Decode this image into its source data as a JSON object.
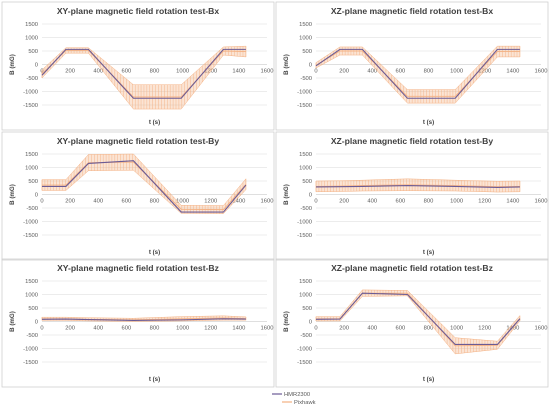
{
  "chart_data": [
    {
      "type": "line",
      "title": "XY-plane magnetic field rotation test-Bx",
      "xlabel": "t (s)",
      "ylabel": "B (mG)",
      "xlim": [
        0,
        1600
      ],
      "ylim": [
        -1500,
        1500
      ],
      "x_ticks": [
        0,
        200,
        400,
        600,
        800,
        1000,
        1200,
        1400,
        1600
      ],
      "y_ticks": [
        1500,
        1000,
        500,
        0,
        -500,
        -1000,
        -1500
      ],
      "grid": true,
      "series": [
        {
          "name": "HMR2300",
          "x": [
            0,
            170,
            330,
            650,
            990,
            1290,
            1450
          ],
          "y": [
            -400,
            560,
            560,
            -1250,
            -1250,
            560,
            560
          ]
        },
        {
          "name": "Pixhawk",
          "x": [
            0,
            170,
            330,
            650,
            990,
            1290,
            1450
          ],
          "y": [
            -350,
            520,
            520,
            -1200,
            -1200,
            500,
            480
          ],
          "band": [
            150,
            100,
            100,
            450,
            450,
            150,
            200
          ]
        }
      ]
    },
    {
      "type": "line",
      "title": "XZ-plane magnetic field rotation test-Bx",
      "xlabel": "t (s)",
      "ylabel": "B (mG)",
      "xlim": [
        0,
        1600
      ],
      "ylim": [
        -1500,
        1500
      ],
      "x_ticks": [
        0,
        200,
        400,
        600,
        800,
        1000,
        1200,
        1400,
        1600
      ],
      "y_ticks": [
        1500,
        1000,
        500,
        0,
        -500,
        -1000,
        -1500
      ],
      "grid": true,
      "series": [
        {
          "name": "HMR2300",
          "x": [
            0,
            170,
            330,
            650,
            990,
            1290,
            1450
          ],
          "y": [
            -50,
            560,
            560,
            -1250,
            -1250,
            560,
            560
          ]
        },
        {
          "name": "Pixhawk",
          "x": [
            0,
            170,
            330,
            650,
            990,
            1290,
            1450
          ],
          "y": [
            -30,
            500,
            500,
            -1180,
            -1180,
            480,
            480
          ],
          "band": [
            100,
            150,
            150,
            250,
            250,
            200,
            200
          ]
        }
      ]
    },
    {
      "type": "line",
      "title": "XY-plane magnetic field rotation test-By",
      "xlabel": "t (s)",
      "ylabel": "B (mG)",
      "xlim": [
        0,
        1600
      ],
      "ylim": [
        -1500,
        1500
      ],
      "x_ticks": [
        0,
        200,
        400,
        600,
        800,
        1000,
        1200,
        1400,
        1600
      ],
      "y_ticks": [
        1500,
        1000,
        500,
        0,
        -500,
        -1000,
        -1500
      ],
      "grid": true,
      "series": [
        {
          "name": "HMR2300",
          "x": [
            0,
            170,
            330,
            650,
            990,
            1290,
            1450
          ],
          "y": [
            300,
            300,
            1150,
            1250,
            -650,
            -650,
            350
          ]
        },
        {
          "name": "Pixhawk",
          "x": [
            0,
            170,
            330,
            650,
            990,
            1290,
            1450
          ],
          "y": [
            350,
            350,
            1180,
            1200,
            -550,
            -560,
            380
          ],
          "band": [
            200,
            200,
            300,
            300,
            150,
            150,
            200
          ]
        }
      ]
    },
    {
      "type": "line",
      "title": "XZ-plane magnetic field rotation test-By",
      "xlabel": "t (s)",
      "ylabel": "B (mG)",
      "xlim": [
        0,
        1600
      ],
      "ylim": [
        -1500,
        1500
      ],
      "x_ticks": [
        0,
        200,
        400,
        600,
        800,
        1000,
        1200,
        1400,
        1600
      ],
      "y_ticks": [
        1500,
        1000,
        500,
        0,
        -500,
        -1000,
        -1500
      ],
      "grid": true,
      "series": [
        {
          "name": "HMR2300",
          "x": [
            0,
            170,
            330,
            650,
            990,
            1290,
            1450
          ],
          "y": [
            280,
            290,
            300,
            330,
            300,
            260,
            280
          ]
        },
        {
          "name": "Pixhawk",
          "x": [
            0,
            170,
            330,
            650,
            990,
            1290,
            1450
          ],
          "y": [
            300,
            310,
            330,
            360,
            330,
            290,
            300
          ],
          "band": [
            200,
            200,
            200,
            220,
            200,
            200,
            200
          ]
        }
      ]
    },
    {
      "type": "line",
      "title": "XY-plane magnetic field rotation test-Bz",
      "xlabel": "t (s)",
      "ylabel": "B (mG)",
      "xlim": [
        0,
        1600
      ],
      "ylim": [
        -1500,
        1500
      ],
      "x_ticks": [
        0,
        200,
        400,
        600,
        800,
        1000,
        1200,
        1400,
        1600
      ],
      "y_ticks": [
        1500,
        1000,
        500,
        0,
        -500,
        -1000,
        -1500
      ],
      "grid": true,
      "series": [
        {
          "name": "HMR2300",
          "x": [
            0,
            170,
            330,
            650,
            990,
            1290,
            1450
          ],
          "y": [
            80,
            90,
            70,
            40,
            60,
            100,
            90
          ]
        },
        {
          "name": "Pixhawk",
          "x": [
            0,
            170,
            330,
            650,
            990,
            1290,
            1450
          ],
          "y": [
            100,
            100,
            80,
            60,
            100,
            130,
            110
          ],
          "band": [
            60,
            60,
            60,
            60,
            80,
            80,
            60
          ]
        }
      ]
    },
    {
      "type": "line",
      "title": "XZ-plane magnetic field rotation test-Bz",
      "xlabel": "t (s)",
      "ylabel": "B (mG)",
      "xlim": [
        0,
        1600
      ],
      "ylim": [
        -1500,
        1500
      ],
      "x_ticks": [
        0,
        200,
        400,
        600,
        800,
        1000,
        1200,
        1400,
        1600
      ],
      "y_ticks": [
        1500,
        1000,
        500,
        0,
        -500,
        -1000,
        -1500
      ],
      "grid": true,
      "series": [
        {
          "name": "HMR2300",
          "x": [
            0,
            170,
            330,
            650,
            990,
            1290,
            1450
          ],
          "y": [
            80,
            90,
            1050,
            1000,
            -850,
            -850,
            100
          ]
        },
        {
          "name": "Pixhawk",
          "x": [
            0,
            170,
            330,
            650,
            990,
            1290,
            1450
          ],
          "y": [
            100,
            100,
            1050,
            1050,
            -900,
            -880,
            120
          ],
          "band": [
            80,
            80,
            120,
            100,
            300,
            150,
            100
          ]
        }
      ]
    }
  ],
  "legend": {
    "hmr2300": "HMR2300",
    "pixhawk": "Pixhawk",
    "hmr2300_color": "#6b5b95",
    "pixhawk_color": "#f4b183"
  }
}
